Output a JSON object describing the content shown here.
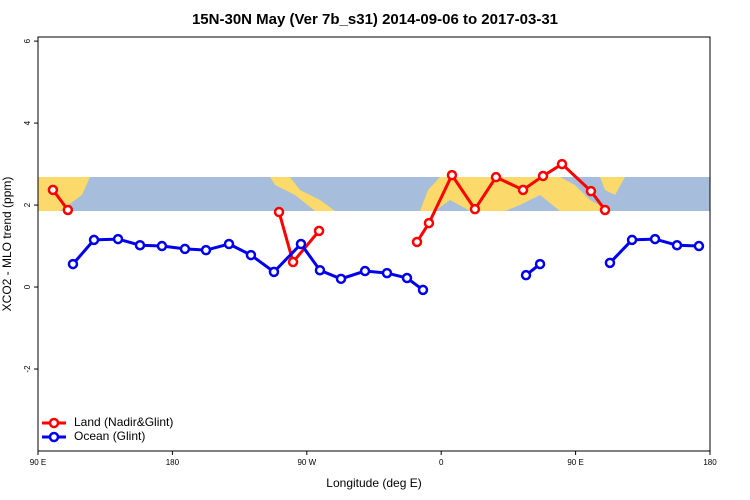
{
  "chart_data": {
    "type": "line",
    "title": "15N-30N May (Ver 7b_s31)   2014-09-06 to 2017-03-31",
    "x_label": "Longitude (deg E)",
    "y_label": "XCO2 - MLO trend (ppm)",
    "xlim": [
      90,
      540
    ],
    "xticks": [
      {
        "value": 90,
        "label": "90 E"
      },
      180,
      {
        "value": 270,
        "label": "90 W"
      },
      {
        "value": 360,
        "label": "0"
      },
      {
        "value": 450,
        "label": "90 E"
      },
      {
        "value": 540,
        "label": "180"
      }
    ],
    "ylim": [
      -4,
      6.1
    ],
    "yticks": [
      -2,
      0,
      2,
      4,
      6
    ],
    "legend": "bottom-left",
    "series": [
      {
        "name": "Land (Nadir&Glint)",
        "color": "#ff0000",
        "x": [
          100,
          110,
          null,
          251.4,
          260.8,
          278.2,
          null,
          343.8,
          351.8,
          367.2,
          382.6,
          396.7,
          414.8,
          428.2,
          440.9,
          460.3,
          469.7
        ],
        "values": [
          2.37,
          1.88,
          null,
          1.83,
          0.61,
          1.37,
          null,
          1.1,
          1.56,
          2.73,
          1.9,
          2.68,
          2.37,
          2.71,
          3.0,
          2.34,
          1.88
        ]
      },
      {
        "name": "Ocean (Glint)",
        "color": "#0000ee",
        "x": [
          113.4,
          127.5,
          143.6,
          158.3,
          173,
          188.4,
          202.5,
          217.9,
          232.6,
          248,
          266.1,
          278.8,
          292.9,
          309,
          323.7,
          337.1,
          347.8,
          null,
          416.8,
          426.2,
          null,
          473,
          487.8,
          503.2,
          517.9,
          532.6
        ],
        "values": [
          0.56,
          1.15,
          1.17,
          1.02,
          1.0,
          0.93,
          0.9,
          1.05,
          0.78,
          0.37,
          1.05,
          0.41,
          0.2,
          0.39,
          0.34,
          0.22,
          -0.07,
          null,
          0.29,
          0.56,
          null,
          0.59,
          1.15,
          1.17,
          1.02,
          1.0
        ]
      }
    ]
  }
}
